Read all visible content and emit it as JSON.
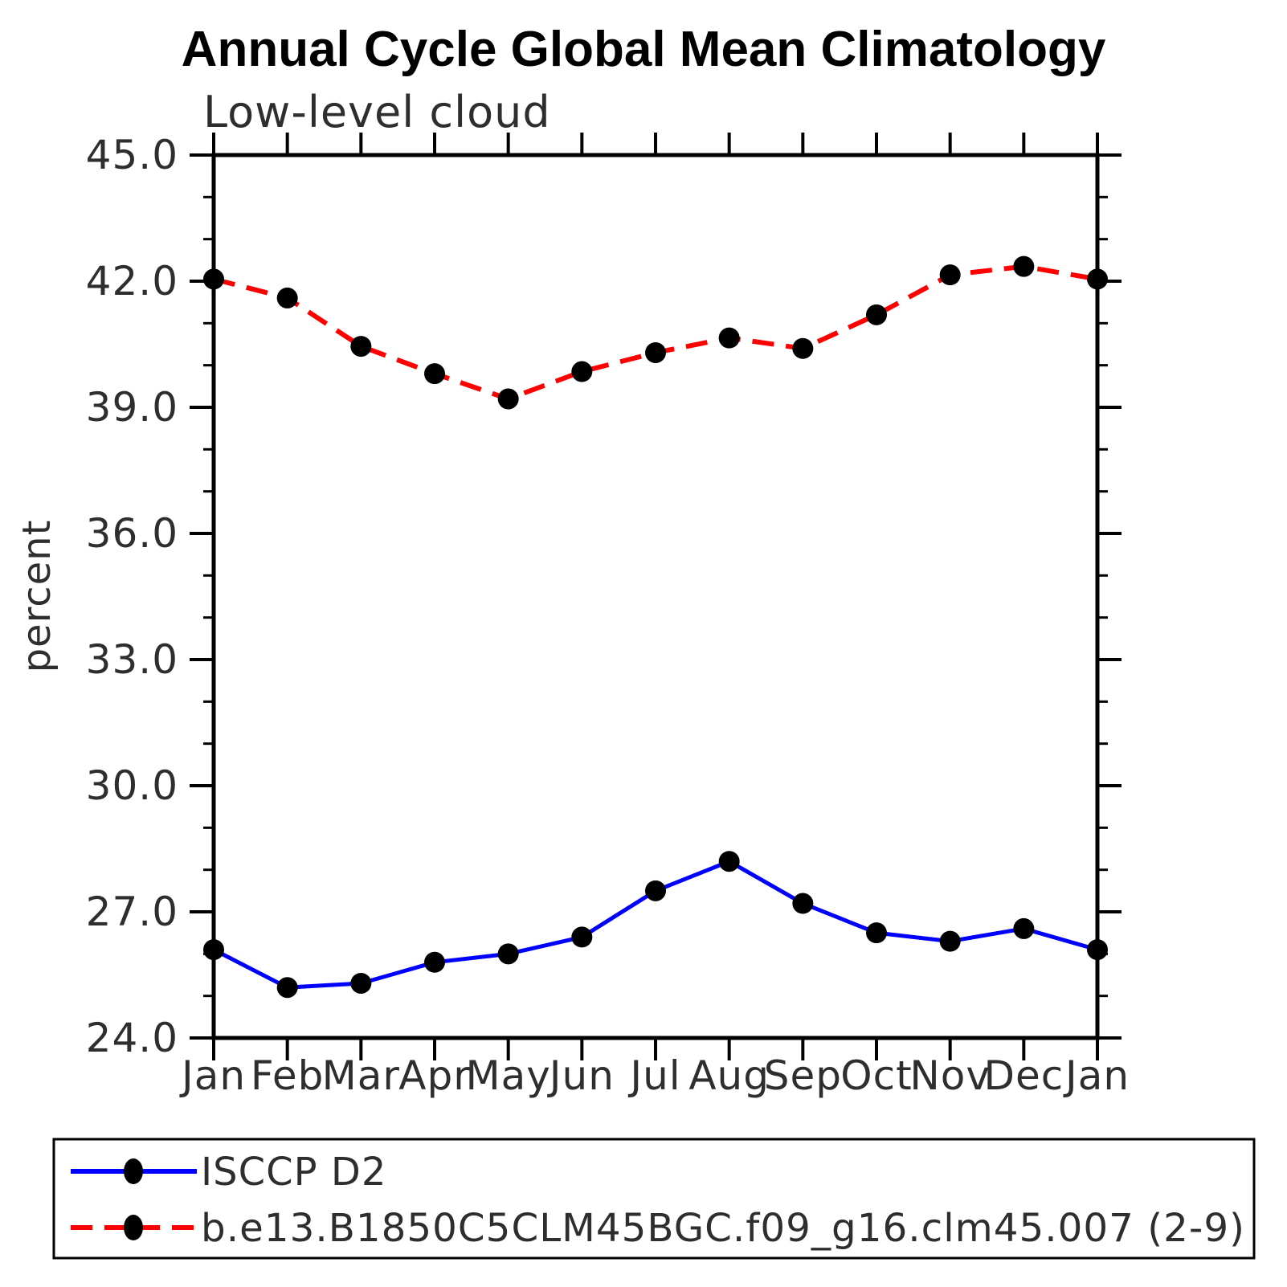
{
  "page_title": "Annual Cycle Global Mean Climatology",
  "colors": {
    "obs_line": "#0000ff",
    "model_line": "#ff0000",
    "marker_fill": "#000000",
    "axis": "#000000",
    "thin_text": "#2e2e2e",
    "background": "#ffffff"
  },
  "legend": {
    "entries": [
      {
        "label": "ISCCP D2",
        "line_style": "solid",
        "line_color": "#0000ff",
        "marker": "filled-circle"
      },
      {
        "label": "b.e13.B1850C5CLM45BGC.f09_g16.clm45.007 (2-9)",
        "line_style": "dashed",
        "line_color": "#ff0000",
        "marker": "filled-circle"
      }
    ]
  },
  "chart_data": {
    "type": "line",
    "title": "Annual Cycle Global Mean Climatology",
    "subtitle": "Low-level cloud",
    "xlabel": "",
    "ylabel": "percent",
    "categories": [
      "Jan",
      "Feb",
      "Mar",
      "Apr",
      "May",
      "Jun",
      "Jul",
      "Aug",
      "Sep",
      "Oct",
      "Nov",
      "Dec",
      "Jan"
    ],
    "series": [
      {
        "name": "ISCCP D2",
        "color": "#0000ff",
        "dash": "solid",
        "marker": "filled-circle",
        "values": [
          26.1,
          25.2,
          25.3,
          25.8,
          26.0,
          26.4,
          27.5,
          28.2,
          27.2,
          26.5,
          26.3,
          26.6,
          26.1
        ]
      },
      {
        "name": "b.e13.B1850C5CLM45BGC.f09_g16.clm45.007 (2-9)",
        "color": "#ff0000",
        "dash": "dashed",
        "marker": "filled-circle",
        "values": [
          42.05,
          41.6,
          40.45,
          39.8,
          39.2,
          39.85,
          40.3,
          40.65,
          40.4,
          41.2,
          42.15,
          42.35,
          42.05
        ]
      }
    ],
    "ylim": [
      24.0,
      45.0
    ],
    "ytick_major": [
      24.0,
      27.0,
      30.0,
      33.0,
      36.0,
      39.0,
      42.0,
      45.0
    ],
    "ytick_minor_step": 1.0,
    "ytick_label_format": "one-decimal",
    "grid": false,
    "legend_position": "bottom-left-box"
  }
}
